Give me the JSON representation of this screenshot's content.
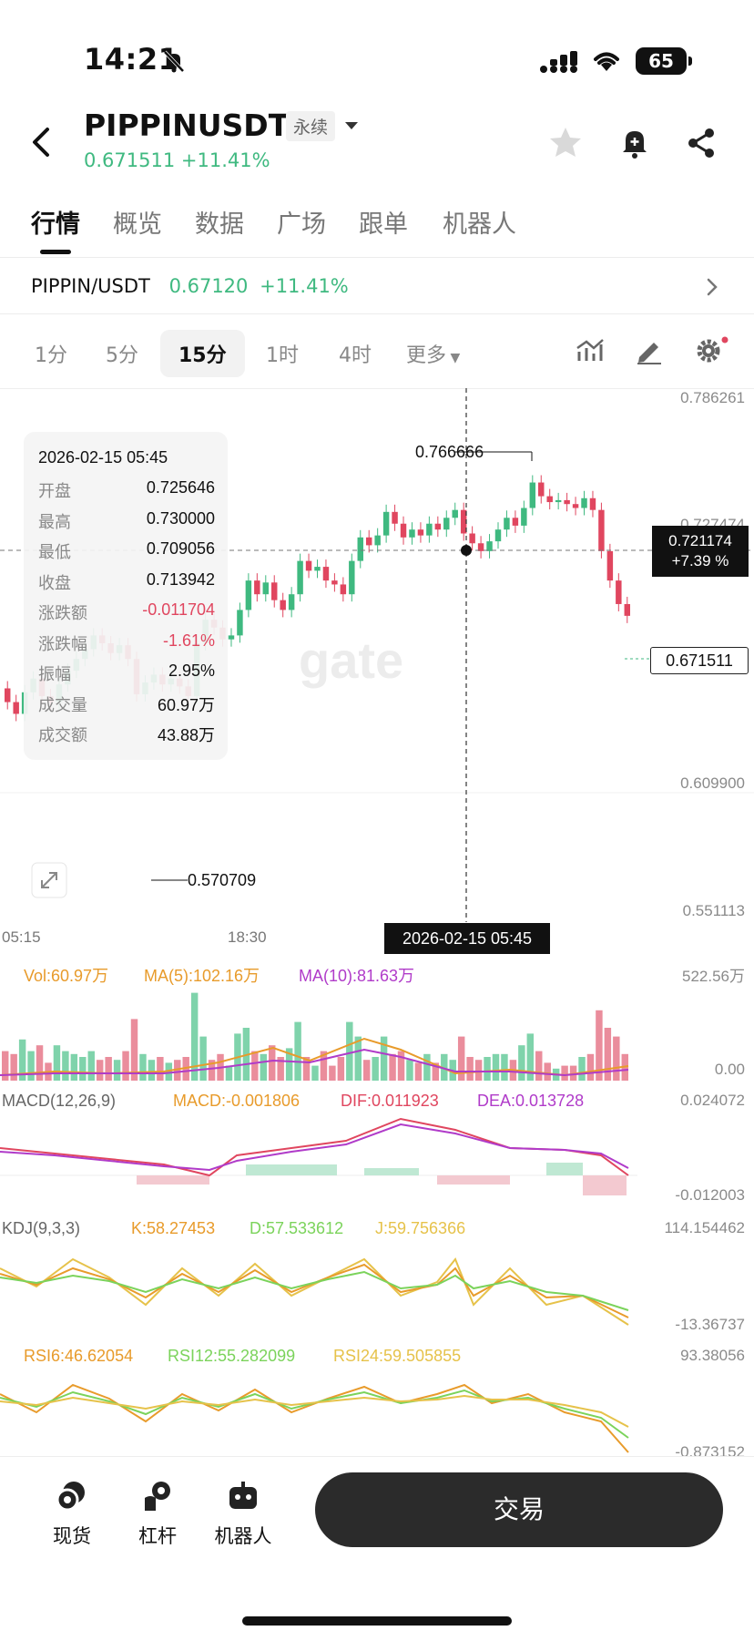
{
  "status_bar": {
    "time": "14:21",
    "battery": "65"
  },
  "header": {
    "title": "PIPPINUSDT",
    "tag": "永续",
    "price": "0.671511",
    "change": "+11.41%"
  },
  "tabs": [
    "行情",
    "概览",
    "数据",
    "广场",
    "跟单",
    "机器人"
  ],
  "pair_row": {
    "pair": "PIPPIN/USDT",
    "price": "0.67120",
    "change": "+11.41%"
  },
  "intervals": [
    "1分",
    "5分",
    "15分",
    "1时",
    "4时",
    "更多"
  ],
  "chart_data": {
    "type": "candlestick",
    "y_axis_labels": [
      "0.786261",
      "0.727474",
      "0.609900",
      "0.551113"
    ],
    "watermark": "gate",
    "high_marker": "0.766666",
    "low_marker": "0.570709",
    "x_axis_labels": [
      "05:15",
      "18:30"
    ],
    "crosshair": {
      "time": "2026-02-15 05:45",
      "price": "0.721174",
      "change": "+7.39 %"
    },
    "current_price": "0.671511",
    "series": [
      {
        "o": 0.635,
        "c": 0.628
      },
      {
        "o": 0.628,
        "c": 0.622
      },
      {
        "o": 0.622,
        "c": 0.633
      },
      {
        "o": 0.633,
        "c": 0.64
      },
      {
        "o": 0.64,
        "c": 0.631
      },
      {
        "o": 0.631,
        "c": 0.628
      },
      {
        "o": 0.628,
        "c": 0.637
      },
      {
        "o": 0.637,
        "c": 0.644
      },
      {
        "o": 0.644,
        "c": 0.65
      },
      {
        "o": 0.65,
        "c": 0.655
      },
      {
        "o": 0.655,
        "c": 0.662
      },
      {
        "o": 0.662,
        "c": 0.658
      },
      {
        "o": 0.658,
        "c": 0.653
      },
      {
        "o": 0.653,
        "c": 0.657
      },
      {
        "o": 0.657,
        "c": 0.65
      },
      {
        "o": 0.65,
        "c": 0.632
      },
      {
        "o": 0.632,
        "c": 0.638
      },
      {
        "o": 0.638,
        "c": 0.642
      },
      {
        "o": 0.642,
        "c": 0.637
      },
      {
        "o": 0.637,
        "c": 0.64
      },
      {
        "o": 0.64,
        "c": 0.636
      },
      {
        "o": 0.636,
        "c": 0.631
      },
      {
        "o": 0.631,
        "c": 0.658
      },
      {
        "o": 0.658,
        "c": 0.67
      },
      {
        "o": 0.67,
        "c": 0.666
      },
      {
        "o": 0.666,
        "c": 0.66
      },
      {
        "o": 0.66,
        "c": 0.662
      },
      {
        "o": 0.662,
        "c": 0.675
      },
      {
        "o": 0.675,
        "c": 0.69
      },
      {
        "o": 0.69,
        "c": 0.683
      },
      {
        "o": 0.683,
        "c": 0.689
      },
      {
        "o": 0.689,
        "c": 0.68
      },
      {
        "o": 0.68,
        "c": 0.675
      },
      {
        "o": 0.675,
        "c": 0.683
      },
      {
        "o": 0.683,
        "c": 0.7
      },
      {
        "o": 0.7,
        "c": 0.695
      },
      {
        "o": 0.695,
        "c": 0.697
      },
      {
        "o": 0.697,
        "c": 0.69
      },
      {
        "o": 0.69,
        "c": 0.688
      },
      {
        "o": 0.688,
        "c": 0.683
      },
      {
        "o": 0.683,
        "c": 0.7
      },
      {
        "o": 0.7,
        "c": 0.712
      },
      {
        "o": 0.712,
        "c": 0.708
      },
      {
        "o": 0.708,
        "c": 0.713
      },
      {
        "o": 0.713,
        "c": 0.725
      },
      {
        "o": 0.725,
        "c": 0.719
      },
      {
        "o": 0.719,
        "c": 0.712
      },
      {
        "o": 0.712,
        "c": 0.716
      },
      {
        "o": 0.716,
        "c": 0.713
      },
      {
        "o": 0.713,
        "c": 0.719
      },
      {
        "o": 0.719,
        "c": 0.716
      },
      {
        "o": 0.716,
        "c": 0.722
      },
      {
        "o": 0.722,
        "c": 0.726
      },
      {
        "o": 0.726,
        "c": 0.714
      },
      {
        "o": 0.714,
        "c": 0.709
      },
      {
        "o": 0.709,
        "c": 0.705
      },
      {
        "o": 0.705,
        "c": 0.71
      },
      {
        "o": 0.71,
        "c": 0.716
      },
      {
        "o": 0.716,
        "c": 0.722
      },
      {
        "o": 0.722,
        "c": 0.718
      },
      {
        "o": 0.718,
        "c": 0.727
      },
      {
        "o": 0.727,
        "c": 0.74
      },
      {
        "o": 0.74,
        "c": 0.733
      },
      {
        "o": 0.733,
        "c": 0.73
      },
      {
        "o": 0.73,
        "c": 0.731
      },
      {
        "o": 0.731,
        "c": 0.729
      },
      {
        "o": 0.729,
        "c": 0.727
      },
      {
        "o": 0.727,
        "c": 0.732
      },
      {
        "o": 0.732,
        "c": 0.726
      },
      {
        "o": 0.726,
        "c": 0.705
      },
      {
        "o": 0.705,
        "c": 0.69
      },
      {
        "o": 0.69,
        "c": 0.678
      },
      {
        "o": 0.678,
        "c": 0.672
      }
    ]
  },
  "info_box": {
    "time": "2026-02-15 05:45",
    "rows": [
      {
        "k": "开盘",
        "v": "0.725646"
      },
      {
        "k": "最高",
        "v": "0.730000"
      },
      {
        "k": "最低",
        "v": "0.709056"
      },
      {
        "k": "收盘",
        "v": "0.713942"
      },
      {
        "k": "涨跌额",
        "v": "-0.011704"
      },
      {
        "k": "涨跌幅",
        "v": "-1.61%"
      },
      {
        "k": "振幅",
        "v": "2.95%"
      },
      {
        "k": "成交量",
        "v": "60.97万"
      },
      {
        "k": "成交额",
        "v": "43.88万"
      }
    ]
  },
  "volume": {
    "vol": "Vol:60.97万",
    "ma5": "MA(5):102.16万",
    "ma10": "MA(10):81.63万",
    "max": "522.56万",
    "min": "0.00"
  },
  "macd": {
    "name": "MACD(12,26,9)",
    "macd": "MACD:-0.001806",
    "dif": "DIF:0.011923",
    "dea": "DEA:0.013728",
    "max": "0.024072",
    "min": "-0.012003"
  },
  "kdj": {
    "name": "KDJ(9,3,3)",
    "k": "K:58.27453",
    "d": "D:57.533612",
    "j": "J:59.756366",
    "max": "114.154462",
    "min": "-13.36737"
  },
  "rsi": {
    "rsi6": "RSI6:46.62054",
    "rsi12": "RSI12:55.282099",
    "rsi24": "RSI24:59.505855",
    "max": "93.38056",
    "min": "-0.873152"
  },
  "bottom": {
    "spot": "现货",
    "leverage": "杠杆",
    "bot": "机器人",
    "trade": "交易"
  },
  "colors": {
    "up": "#3fb980",
    "down": "#e0465f",
    "accent": "#111111"
  }
}
